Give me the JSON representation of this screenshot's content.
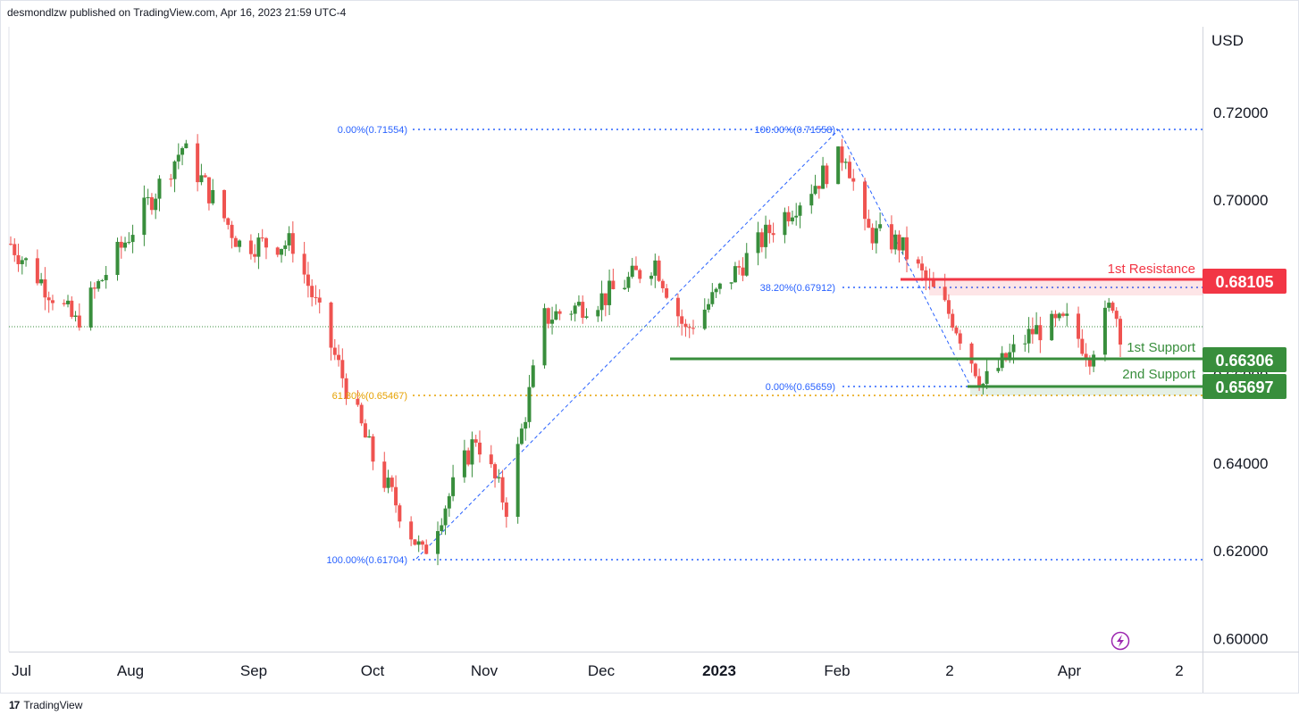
{
  "header": {
    "publisher": "desmondlzw published on TradingView.com, Apr 16, 2023 21:59 UTC-4"
  },
  "footer": {
    "brand": "TradingView",
    "logo_mark": "17"
  },
  "colors": {
    "up": "#388e3c",
    "down": "#ef5350",
    "resistance": "#f23645",
    "support": "#388e3c",
    "fib": "#2962ff",
    "fib_gold": "#e6a100"
  },
  "chart_data": {
    "type": "candlestick",
    "currency_label": "USD",
    "y_ticks": [
      "0.72000",
      "0.70000",
      "0.68000",
      "0.66000",
      "0.64000",
      "0.62000",
      "0.60000"
    ],
    "x_ticks": [
      "Jul",
      "Aug",
      "Sep",
      "Oct",
      "Nov",
      "Dec",
      "2023",
      "Feb",
      "2",
      "Apr",
      "2"
    ],
    "ylim": [
      0.597,
      0.7395
    ],
    "levels": [
      {
        "name": "1st Resistance",
        "value": 0.68105,
        "badge": "0.68105",
        "color": "#f23645"
      },
      {
        "name": "1st Support",
        "value": 0.66306,
        "badge": "0.66306",
        "color": "#388e3c"
      },
      {
        "name": "2nd Support",
        "value": 0.65697,
        "badge": "0.65697",
        "color": "#388e3c"
      }
    ],
    "fib_labels": [
      {
        "text": "0.00%(0.71554)",
        "value": 0.71554
      },
      {
        "text": "100.00%(0.61704)",
        "value": 0.61704
      },
      {
        "text": "61.80%(0.65467)",
        "value": 0.65467
      },
      {
        "text": "100.00%(0.71558)",
        "value": 0.71558
      },
      {
        "text": "38.20%(0.67912)",
        "value": 0.67912
      },
      {
        "text": "0.00%(0.65659)",
        "value": 0.65659
      }
    ],
    "price_anchors": [
      {
        "date": "2022-06-27",
        "price": 0.69
      },
      {
        "date": "2022-07-14",
        "price": 0.672
      },
      {
        "date": "2022-08-11",
        "price": 0.712
      },
      {
        "date": "2022-08-26",
        "price": 0.69
      },
      {
        "date": "2022-09-09",
        "price": 0.69
      },
      {
        "date": "2022-09-30",
        "price": 0.641
      },
      {
        "date": "2022-10-13",
        "price": 0.619
      },
      {
        "date": "2022-10-27",
        "price": 0.646
      },
      {
        "date": "2022-11-04",
        "price": 0.63
      },
      {
        "date": "2022-11-14",
        "price": 0.673
      },
      {
        "date": "2022-11-30",
        "price": 0.678
      },
      {
        "date": "2022-12-13",
        "price": 0.686
      },
      {
        "date": "2022-12-21",
        "price": 0.67
      },
      {
        "date": "2023-01-13",
        "price": 0.694
      },
      {
        "date": "2023-02-01",
        "price": 0.711
      },
      {
        "date": "2023-02-06",
        "price": 0.693
      },
      {
        "date": "2023-02-15",
        "price": 0.69
      },
      {
        "date": "2023-03-01",
        "price": 0.673
      },
      {
        "date": "2023-03-09",
        "price": 0.658
      },
      {
        "date": "2023-03-22",
        "price": 0.67
      },
      {
        "date": "2023-03-31",
        "price": 0.672
      },
      {
        "date": "2023-04-06",
        "price": 0.665
      },
      {
        "date": "2023-04-12",
        "price": 0.677
      },
      {
        "date": "2023-04-14",
        "price": 0.67
      }
    ]
  }
}
